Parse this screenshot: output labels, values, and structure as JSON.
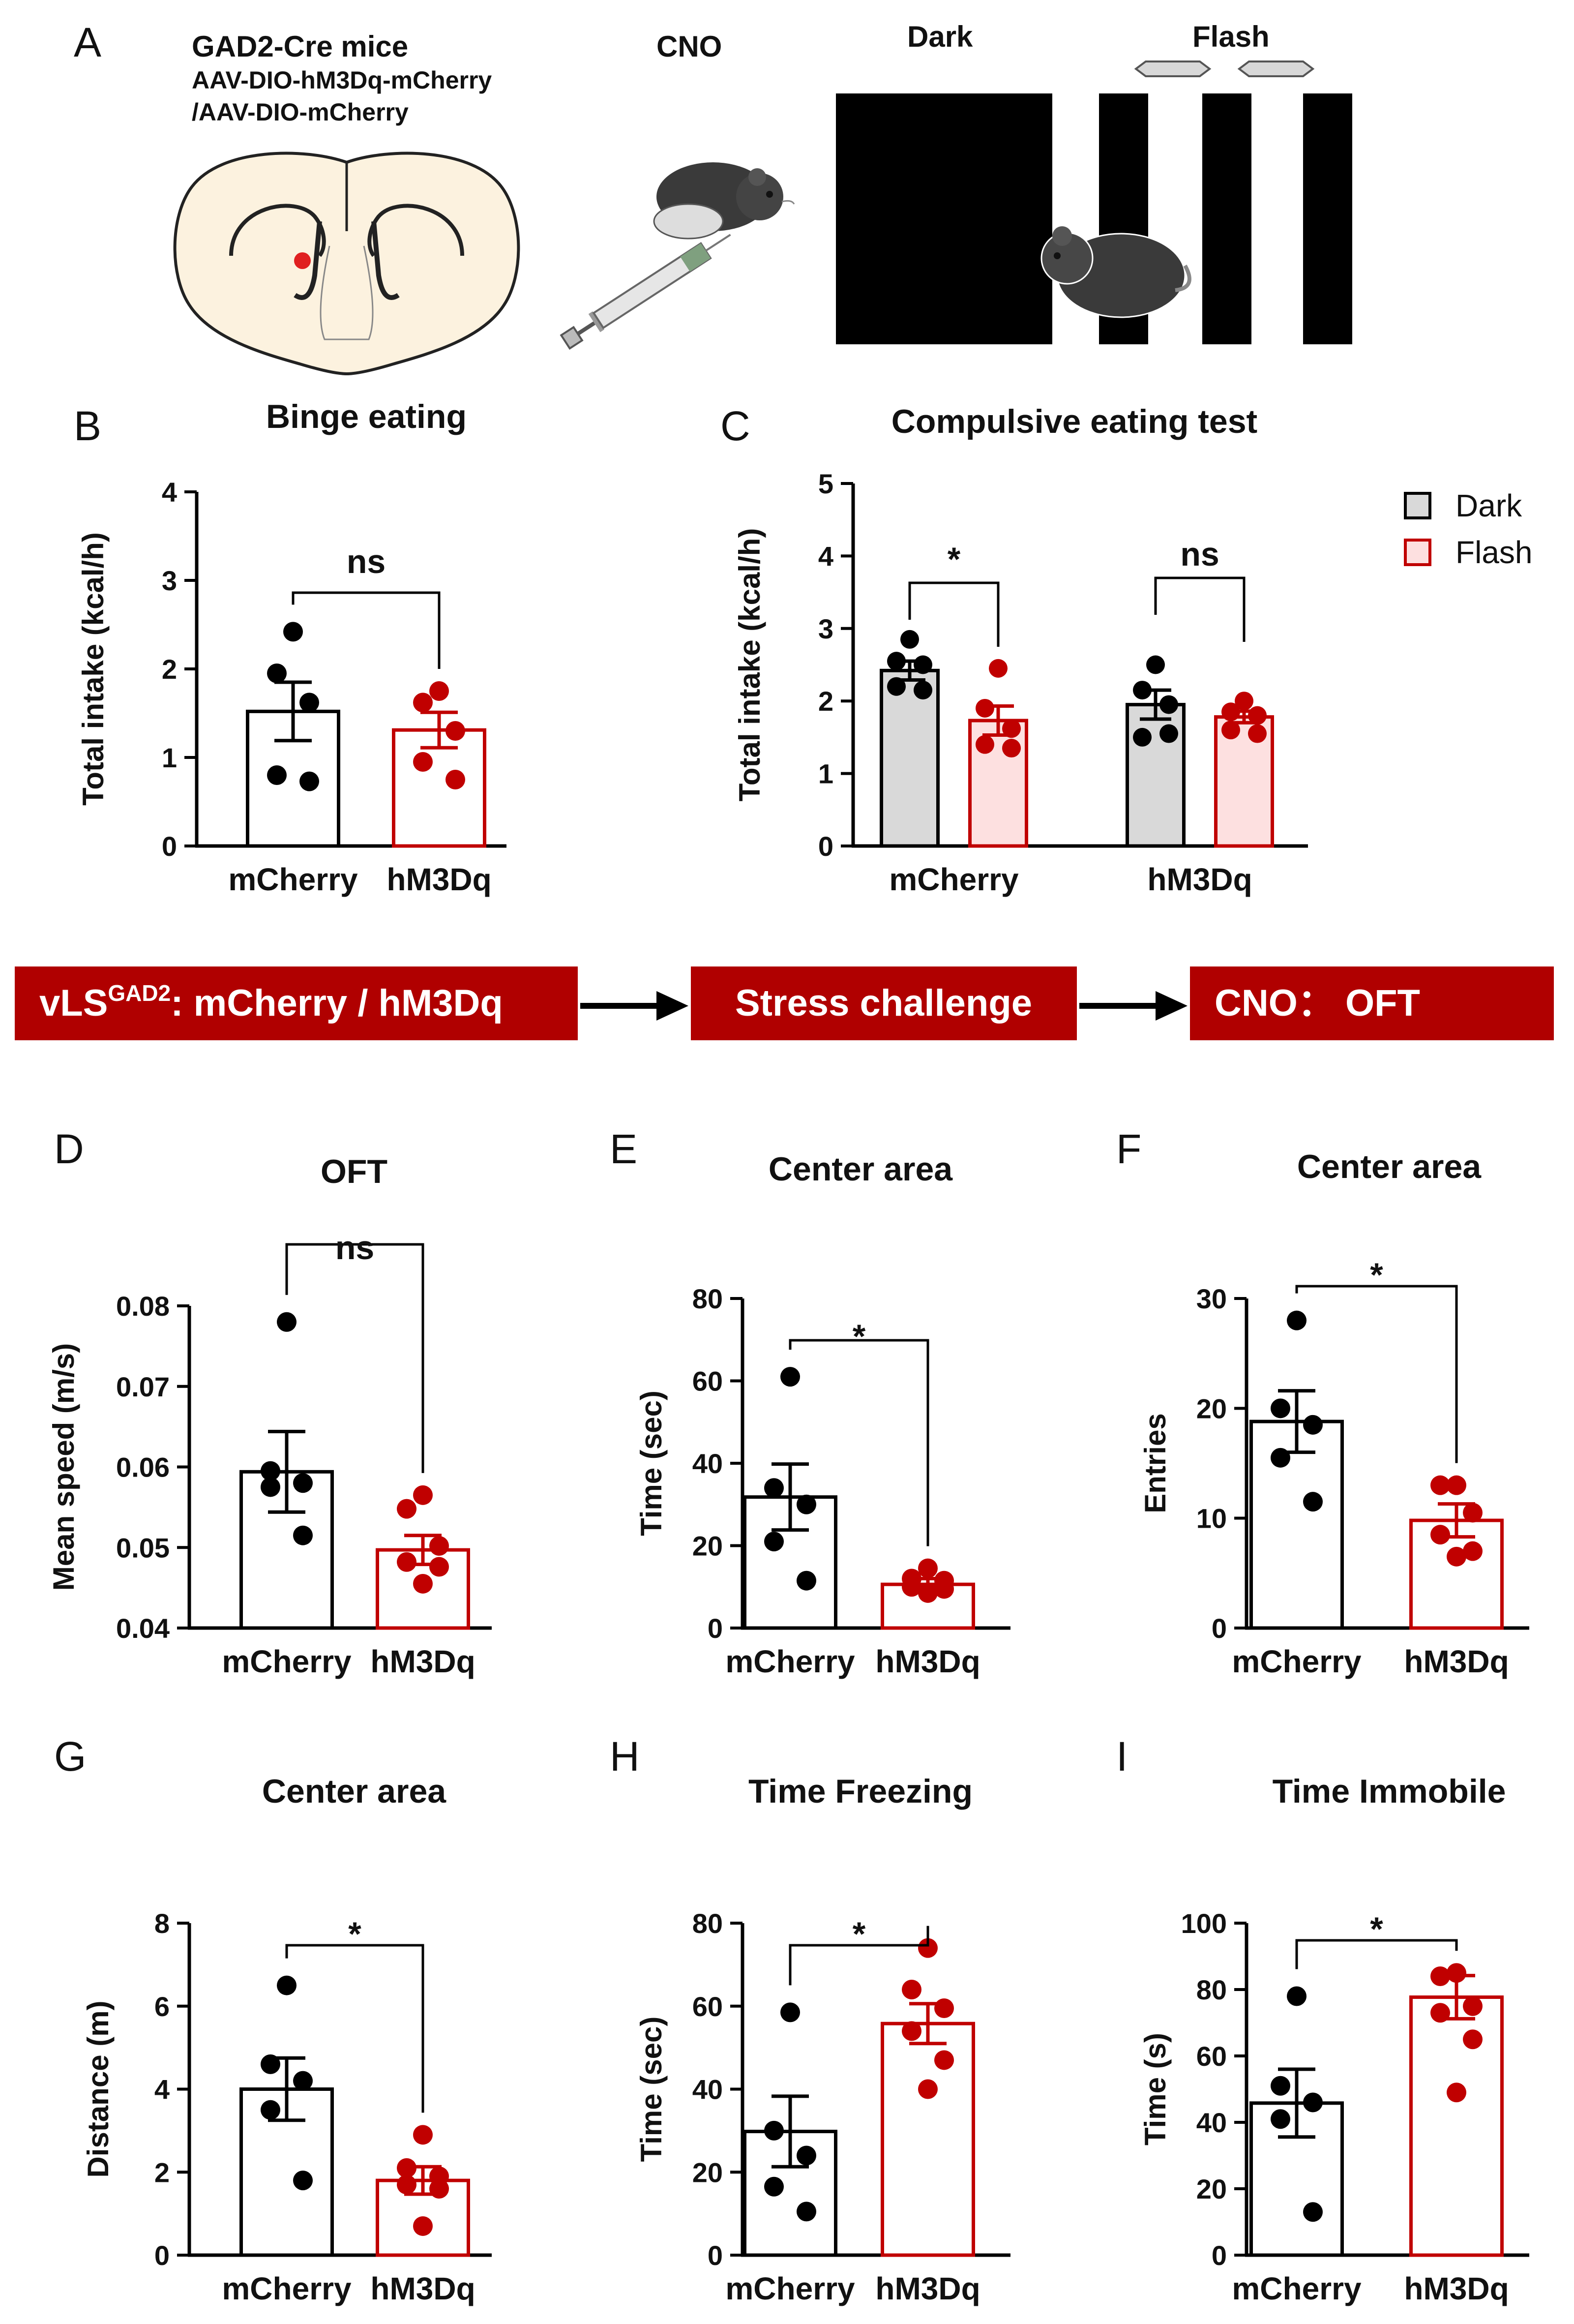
{
  "colors": {
    "black": "#000000",
    "red": "#c00000",
    "dark_fill": "#d9d9d9",
    "flash_fill": "#fde0e0",
    "banner": "#b00000"
  },
  "panel_a": {
    "label": "A",
    "mice": "GAD2-Cre mice",
    "virus1": "AAV-DIO-hM3Dq-mCherry",
    "virus2": "/AAV-DIO-mCherry",
    "cno": "CNO",
    "dark": "Dark",
    "flash": "Flash"
  },
  "flow": {
    "step1_prefix": "vLS",
    "step1_sup": "GAD2",
    "step1_suffix": ": mCherry / hM3Dq",
    "step2": "Stress challenge",
    "step3": "CNO： OFT"
  },
  "legend": {
    "dark": "Dark",
    "flash": "Flash"
  },
  "chart_data": [
    {
      "id": "B",
      "type": "bar",
      "title": "Binge eating",
      "ylabel": "Total intake (kcal/h)",
      "categories": [
        "mCherry",
        "hM3Dq"
      ],
      "ylim": [
        0,
        4
      ],
      "yticks": [
        "0",
        "1",
        "2",
        "3",
        "4"
      ],
      "means": [
        1.52,
        1.31
      ],
      "sem": [
        0.33,
        0.2
      ],
      "points": [
        [
          2.42,
          1.95,
          1.62,
          0.8,
          0.73
        ],
        [
          1.75,
          1.62,
          1.3,
          0.95,
          0.75
        ]
      ],
      "significance": "ns"
    },
    {
      "id": "C",
      "type": "bar",
      "title": "Compulsive eating test",
      "ylabel": "Total intake (kcal/h)",
      "groups": [
        "mCherry",
        "hM3Dq"
      ],
      "series": [
        "Dark",
        "Flash"
      ],
      "ylim": [
        0,
        5
      ],
      "yticks": [
        "0",
        "1",
        "2",
        "3",
        "4",
        "5"
      ],
      "means": [
        [
          2.42,
          1.73
        ],
        [
          1.95,
          1.78
        ]
      ],
      "sem": [
        [
          0.13,
          0.2
        ],
        [
          0.2,
          0.08
        ]
      ],
      "points": [
        [
          [
            2.85,
            2.55,
            2.5,
            2.2,
            2.15
          ],
          [
            2.45,
            1.9,
            1.62,
            1.4,
            1.35
          ]
        ],
        [
          [
            2.5,
            2.15,
            1.95,
            1.5,
            1.55
          ],
          [
            2.0,
            1.85,
            1.8,
            1.6,
            1.55
          ]
        ]
      ],
      "significance": [
        "*",
        "ns"
      ]
    },
    {
      "id": "D",
      "type": "bar",
      "title": "OFT",
      "ylabel": "Mean speed (m/s)",
      "categories": [
        "mCherry",
        "hM3Dq"
      ],
      "ylim": [
        0.04,
        0.08
      ],
      "yticks": [
        "0.04",
        "0.05",
        "0.06",
        "0.07",
        "0.08"
      ],
      "means": [
        0.0594,
        0.0497
      ],
      "sem": [
        0.005,
        0.0018
      ],
      "points": [
        [
          0.078,
          0.0595,
          0.058,
          0.0575,
          0.0515
        ],
        [
          0.0565,
          0.0548,
          0.0502,
          0.0482,
          0.0476,
          0.0455
        ]
      ],
      "significance": "ns"
    },
    {
      "id": "E",
      "type": "bar",
      "title": "Center area",
      "ylabel": "Time (sec)",
      "categories": [
        "mCherry",
        "hM3Dq"
      ],
      "ylim": [
        0,
        80
      ],
      "yticks": [
        "0",
        "20",
        "40",
        "60",
        "80"
      ],
      "means": [
        31.8,
        10.6
      ],
      "sem": [
        8,
        1.4
      ],
      "points": [
        [
          61,
          34,
          30,
          21,
          11.5
        ],
        [
          14.5,
          12,
          11.5,
          10,
          9.5,
          8.5
        ]
      ],
      "significance": "*"
    },
    {
      "id": "F",
      "type": "bar",
      "title": "Center area",
      "ylabel": "Entries",
      "categories": [
        "mCherry",
        "hM3Dq"
      ],
      "ylim": [
        0,
        30
      ],
      "yticks": [
        "0",
        "10",
        "20",
        "30"
      ],
      "means": [
        18.8,
        9.8
      ],
      "sem": [
        2.8,
        1.5
      ],
      "points": [
        [
          28,
          20,
          18.5,
          15.5,
          11.5
        ],
        [
          13,
          13,
          10.5,
          8.5,
          7,
          6.5
        ]
      ],
      "significance": "*"
    },
    {
      "id": "G",
      "type": "bar",
      "title": "Center area",
      "ylabel": "Distance (m)",
      "categories": [
        "mCherry",
        "hM3Dq"
      ],
      "ylim": [
        0,
        8
      ],
      "yticks": [
        "0",
        "2",
        "4",
        "6",
        "8"
      ],
      "means": [
        4.0,
        1.8
      ],
      "sem": [
        0.75,
        0.33
      ],
      "points": [
        [
          6.5,
          4.6,
          4.2,
          3.5,
          1.8
        ],
        [
          2.9,
          2.1,
          1.9,
          1.7,
          1.6,
          0.7
        ]
      ],
      "significance": "*"
    },
    {
      "id": "H",
      "type": "bar",
      "title": "Time Freezing",
      "ylabel": "Time (sec)",
      "categories": [
        "mCherry",
        "hM3Dq"
      ],
      "ylim": [
        0,
        80
      ],
      "yticks": [
        "0",
        "20",
        "40",
        "60",
        "80"
      ],
      "means": [
        29.8,
        55.8
      ],
      "sem": [
        8.5,
        4.8
      ],
      "points": [
        [
          58.5,
          30,
          24,
          16.5,
          10.5
        ],
        [
          74,
          64,
          59.5,
          54,
          47,
          40
        ]
      ],
      "significance": "*"
    },
    {
      "id": "I",
      "type": "bar",
      "title": "Time Immobile",
      "ylabel": "Time (s)",
      "categories": [
        "mCherry",
        "hM3Dq"
      ],
      "ylim": [
        0,
        100
      ],
      "yticks": [
        "0",
        "20",
        "40",
        "60",
        "80",
        "100"
      ],
      "means": [
        45.8,
        77.7
      ],
      "sem": [
        10.2,
        6.5
      ],
      "points": [
        [
          78,
          51,
          46,
          41,
          13
        ],
        [
          85,
          84,
          75,
          73,
          65,
          49
        ]
      ],
      "significance": "*"
    }
  ]
}
